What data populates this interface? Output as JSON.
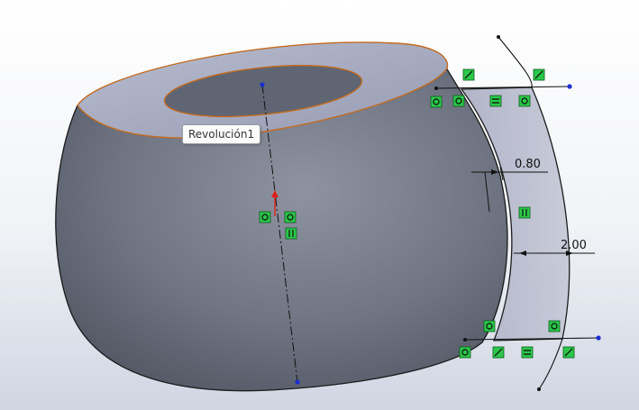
{
  "viewport": {
    "feature_tooltip": "Revolución1",
    "dimensions": [
      {
        "id": "thickness",
        "value": "0.80"
      },
      {
        "id": "offset",
        "value": "2.00"
      }
    ],
    "colors": {
      "background_top": "#ffffff",
      "background_bottom": "#cfd6e2",
      "body_shade": "#6e7482",
      "face_light": "#a7abc0",
      "edge_highlight": "#c26b1f",
      "constraint_green": "#2cc84a",
      "sketch_point": "#1a2fd0",
      "direction_arrow": "#e0201a"
    },
    "icons": [
      "fix-constraint-icon",
      "coincident-icon",
      "equal-constraint-icon",
      "vertical-constraint-icon",
      "horizontal-constraint-icon"
    ]
  }
}
